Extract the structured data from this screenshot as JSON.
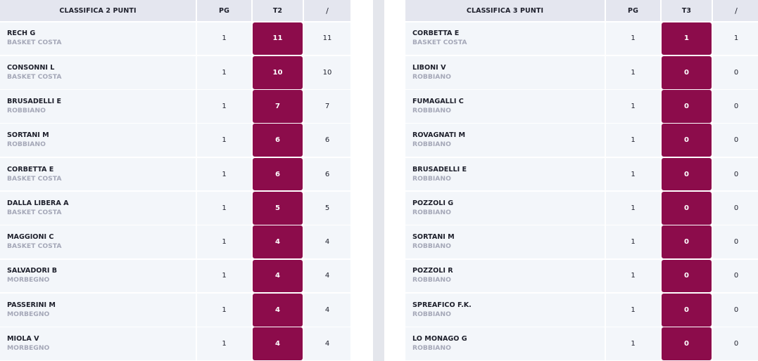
{
  "left_table": {
    "headers": {
      "name": "CLASSIFICA 2 PUNTI",
      "pg": "PG",
      "t": "T2",
      "x": "/"
    },
    "rows": [
      {
        "player": "RECH G",
        "team": "BASKET COSTA",
        "pg": "1",
        "t": "11",
        "x": "11"
      },
      {
        "player": "CONSONNI L",
        "team": "BASKET COSTA",
        "pg": "1",
        "t": "10",
        "x": "10"
      },
      {
        "player": "BRUSADELLI E",
        "team": "ROBBIANO",
        "pg": "1",
        "t": "7",
        "x": "7"
      },
      {
        "player": "SORTANI M",
        "team": "ROBBIANO",
        "pg": "1",
        "t": "6",
        "x": "6"
      },
      {
        "player": "CORBETTA E",
        "team": "BASKET COSTA",
        "pg": "1",
        "t": "6",
        "x": "6"
      },
      {
        "player": "DALLA LIBERA A",
        "team": "BASKET COSTA",
        "pg": "1",
        "t": "5",
        "x": "5"
      },
      {
        "player": "MAGGIONI C",
        "team": "BASKET COSTA",
        "pg": "1",
        "t": "4",
        "x": "4"
      },
      {
        "player": "SALVADORI B",
        "team": "MORBEGNO",
        "pg": "1",
        "t": "4",
        "x": "4"
      },
      {
        "player": "PASSERINI M",
        "team": "MORBEGNO",
        "pg": "1",
        "t": "4",
        "x": "4"
      },
      {
        "player": "MIOLA V",
        "team": "MORBEGNO",
        "pg": "1",
        "t": "4",
        "x": "4"
      }
    ]
  },
  "right_table": {
    "headers": {
      "name": "CLASSIFICA 3 PUNTI",
      "pg": "PG",
      "t": "T3",
      "x": "/"
    },
    "rows": [
      {
        "player": "CORBETTA E",
        "team": "BASKET COSTA",
        "pg": "1",
        "t": "1",
        "x": "1"
      },
      {
        "player": "LIBONI V",
        "team": "ROBBIANO",
        "pg": "1",
        "t": "0",
        "x": "0"
      },
      {
        "player": "FUMAGALLI C",
        "team": "ROBBIANO",
        "pg": "1",
        "t": "0",
        "x": "0"
      },
      {
        "player": "ROVAGNATI M",
        "team": "ROBBIANO",
        "pg": "1",
        "t": "0",
        "x": "0"
      },
      {
        "player": "BRUSADELLI E",
        "team": "ROBBIANO",
        "pg": "1",
        "t": "0",
        "x": "0"
      },
      {
        "player": "POZZOLI G",
        "team": "ROBBIANO",
        "pg": "1",
        "t": "0",
        "x": "0"
      },
      {
        "player": "SORTANI M",
        "team": "ROBBIANO",
        "pg": "1",
        "t": "0",
        "x": "0"
      },
      {
        "player": "POZZOLI R",
        "team": "ROBBIANO",
        "pg": "1",
        "t": "0",
        "x": "0"
      },
      {
        "player": "SPREAFICO F.K.",
        "team": "ROBBIANO",
        "pg": "1",
        "t": "0",
        "x": "0"
      },
      {
        "player": "LO MONAGO G",
        "team": "ROBBIANO",
        "pg": "1",
        "t": "0",
        "x": "0"
      }
    ]
  },
  "colors": {
    "highlight": "#8c0c4b",
    "header_bg": "#e4e6ef",
    "row_bg": "#f3f6fa",
    "team_text": "#a5a8b8"
  }
}
